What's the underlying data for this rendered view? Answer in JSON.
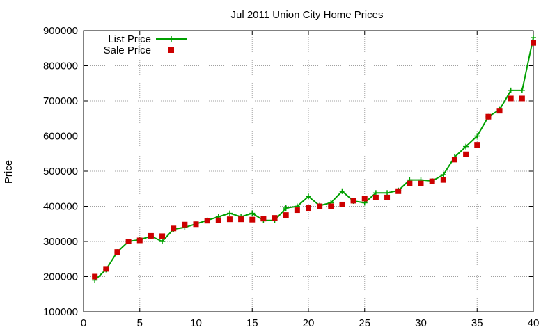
{
  "chart_data": {
    "type": "line",
    "title": "Jul 2011 Union City Home Prices",
    "xlabel": "",
    "ylabel": "Price",
    "xlim": [
      0,
      40
    ],
    "ylim": [
      100000,
      900000
    ],
    "x_ticks": [
      0,
      5,
      10,
      15,
      20,
      25,
      30,
      35,
      40
    ],
    "y_ticks": [
      100000,
      200000,
      300000,
      400000,
      500000,
      600000,
      700000,
      800000,
      900000
    ],
    "grid": true,
    "legend_position": "top-left",
    "series": [
      {
        "name": "List Price",
        "style": "line-with-plus-markers",
        "color": "#00a000",
        "x": [
          1,
          2,
          3,
          4,
          5,
          6,
          7,
          8,
          9,
          10,
          11,
          12,
          13,
          14,
          15,
          16,
          17,
          18,
          19,
          20,
          21,
          22,
          23,
          24,
          25,
          26,
          27,
          28,
          29,
          30,
          31,
          32,
          33,
          34,
          35,
          36,
          37,
          38,
          39,
          40
        ],
        "y": [
          190000,
          220000,
          270000,
          300000,
          305000,
          315000,
          300000,
          335000,
          340000,
          350000,
          360000,
          370000,
          380000,
          370000,
          380000,
          360000,
          360000,
          395000,
          400000,
          428000,
          402000,
          410000,
          443000,
          415000,
          410000,
          438000,
          438000,
          445000,
          475000,
          475000,
          472000,
          490000,
          540000,
          570000,
          600000,
          655000,
          675000,
          730000,
          730000,
          880000
        ]
      },
      {
        "name": "Sale Price",
        "style": "square-markers",
        "color": "#cc0000",
        "x": [
          1,
          2,
          3,
          4,
          5,
          6,
          7,
          8,
          9,
          10,
          11,
          12,
          13,
          14,
          15,
          16,
          17,
          18,
          19,
          20,
          21,
          22,
          23,
          24,
          25,
          26,
          27,
          28,
          29,
          30,
          31,
          32,
          33,
          34,
          35,
          36,
          37,
          38,
          39,
          40
        ],
        "y": [
          200000,
          222000,
          270000,
          300000,
          303000,
          316000,
          315000,
          337000,
          348000,
          349000,
          359000,
          360000,
          363000,
          363000,
          362000,
          365000,
          367000,
          375000,
          389000,
          395000,
          400000,
          400000,
          405000,
          416000,
          422000,
          425000,
          425000,
          443000,
          465000,
          465000,
          471000,
          475000,
          533000,
          548000,
          575000,
          655000,
          672000,
          707000,
          707000,
          865000
        ]
      }
    ]
  }
}
